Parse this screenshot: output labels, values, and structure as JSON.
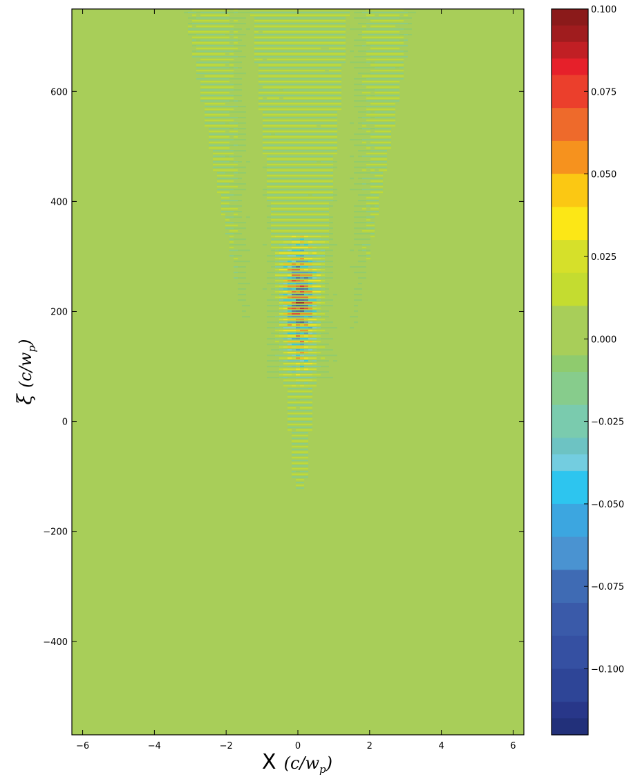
{
  "chart_data": {
    "type": "heatmap",
    "xlabel": "X (c/w_p)",
    "xlabel_main": "X",
    "xlabel_unit": "(c/w",
    "xlabel_sub": "p",
    "xlabel_close": ")",
    "ylabel": "ξ (c/w_p)",
    "ylabel_main": "ξ",
    "ylabel_unit": "(c/w",
    "ylabel_sub": "p",
    "ylabel_close": ")",
    "xlim": [
      -6.3,
      6.3
    ],
    "ylim": [
      -570,
      750
    ],
    "x_ticks": [
      -6,
      -4,
      -2,
      0,
      2,
      4,
      6
    ],
    "x_tick_labels": [
      "−6",
      "−4",
      "−2",
      "0",
      "2",
      "4",
      "6"
    ],
    "y_ticks": [
      -400,
      -200,
      0,
      200,
      400,
      600
    ],
    "y_tick_labels": [
      "−400",
      "−200",
      "0",
      "200",
      "400",
      "600"
    ],
    "background_value": 0.0,
    "features": [
      {
        "name": "central-wake",
        "x_center": 0.0,
        "xi_range": [
          -120,
          750
        ],
        "half_width_at_top": 1.2,
        "peak_value": 0.1,
        "peak_xi_range": [
          120,
          300
        ]
      },
      {
        "name": "outer-cone",
        "x_center": 0.0,
        "xi_range": [
          80,
          750
        ],
        "half_width_at_top": 3.2,
        "amplitude": 0.02
      }
    ],
    "colorbar": {
      "vmin": -0.12,
      "vmax": 0.1,
      "ticks": [
        0.1,
        0.075,
        0.05,
        0.025,
        0.0,
        -0.025,
        -0.05,
        -0.075,
        -0.1
      ],
      "tick_labels": [
        "0.100",
        "0.075",
        "0.050",
        "0.025",
        "0.000",
        "−0.025",
        "−0.050",
        "−0.075",
        "−0.100"
      ],
      "levels": [
        {
          "lo": 0.095,
          "hi": 0.1,
          "color": "#8b1a1a"
        },
        {
          "lo": 0.09,
          "hi": 0.095,
          "color": "#a01c1e"
        },
        {
          "lo": 0.085,
          "hi": 0.09,
          "color": "#c11f24"
        },
        {
          "lo": 0.08,
          "hi": 0.085,
          "color": "#e6202a"
        },
        {
          "lo": 0.07,
          "hi": 0.08,
          "color": "#eb3f2c"
        },
        {
          "lo": 0.06,
          "hi": 0.07,
          "color": "#ee6a2b"
        },
        {
          "lo": 0.05,
          "hi": 0.06,
          "color": "#f6921e"
        },
        {
          "lo": 0.04,
          "hi": 0.05,
          "color": "#fbc813"
        },
        {
          "lo": 0.03,
          "hi": 0.04,
          "color": "#fce716"
        },
        {
          "lo": 0.02,
          "hi": 0.03,
          "color": "#d6e02a"
        },
        {
          "lo": 0.01,
          "hi": 0.02,
          "color": "#c4dc30"
        },
        {
          "lo": -0.005,
          "hi": 0.01,
          "color": "#a8ce59"
        },
        {
          "lo": -0.01,
          "hi": -0.005,
          "color": "#8fcb6e"
        },
        {
          "lo": -0.02,
          "hi": -0.01,
          "color": "#87cc8c"
        },
        {
          "lo": -0.03,
          "hi": -0.02,
          "color": "#7acbae"
        },
        {
          "lo": -0.035,
          "hi": -0.03,
          "color": "#6dc3c3"
        },
        {
          "lo": -0.04,
          "hi": -0.035,
          "color": "#73cde0"
        },
        {
          "lo": -0.05,
          "hi": -0.04,
          "color": "#2dc5ef"
        },
        {
          "lo": -0.06,
          "hi": -0.05,
          "color": "#3ca6e0"
        },
        {
          "lo": -0.07,
          "hi": -0.06,
          "color": "#4a93d1"
        },
        {
          "lo": -0.08,
          "hi": -0.07,
          "color": "#3f6bb4"
        },
        {
          "lo": -0.09,
          "hi": -0.08,
          "color": "#3a5aa9"
        },
        {
          "lo": -0.1,
          "hi": -0.09,
          "color": "#3550a2"
        },
        {
          "lo": -0.11,
          "hi": -0.1,
          "color": "#2e4597"
        },
        {
          "lo": -0.115,
          "hi": -0.11,
          "color": "#283789"
        },
        {
          "lo": -0.12,
          "hi": -0.115,
          "color": "#22307a"
        }
      ]
    }
  }
}
